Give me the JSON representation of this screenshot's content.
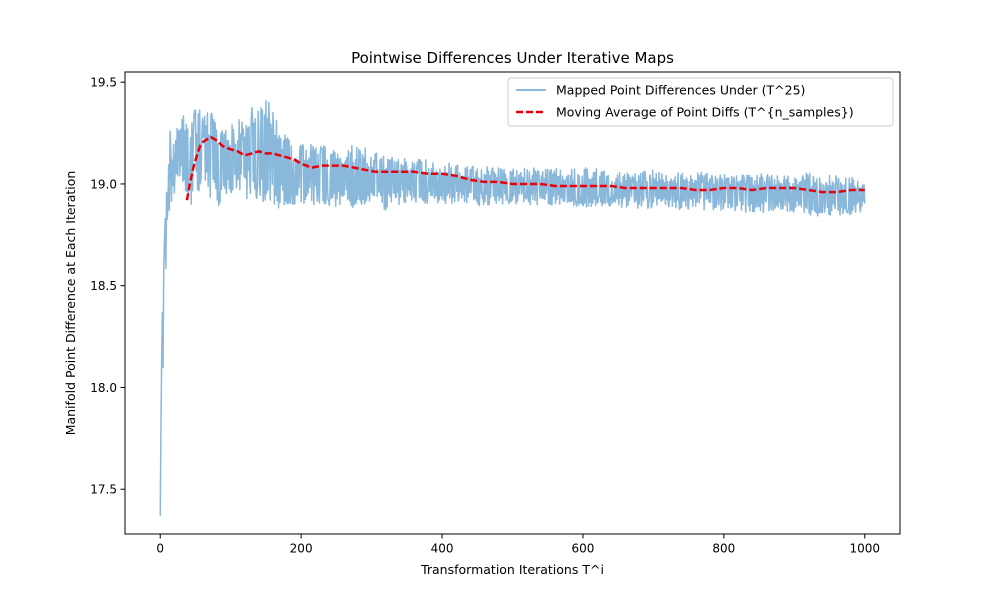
{
  "chart_data": {
    "type": "line",
    "title": "Pointwise Differences Under Iterative Maps",
    "xlabel": "Transformation Iterations T^i",
    "ylabel": "Manifold Point Difference at Each Iteration",
    "xlim": [
      -50,
      1050
    ],
    "ylim": [
      17.28,
      19.55
    ],
    "xticks": [
      0,
      200,
      400,
      600,
      800,
      1000
    ],
    "yticks": [
      17.5,
      18.0,
      18.5,
      19.0,
      19.5
    ],
    "xtick_labels": [
      "0",
      "200",
      "400",
      "600",
      "800",
      "1000"
    ],
    "ytick_labels": [
      "17.5",
      "18.0",
      "18.5",
      "19.0",
      "19.5"
    ],
    "legend_position": "top-right",
    "grid": false,
    "series": [
      {
        "name": "Mapped Point Differences Under (T^25)",
        "color": "#8ab8db",
        "style": "solid",
        "x": [
          0,
          1,
          2,
          3,
          4,
          5,
          6,
          7,
          8,
          9,
          10,
          12,
          14,
          16,
          18,
          20,
          22,
          24,
          26,
          28,
          30,
          32,
          34,
          36,
          38,
          40,
          42,
          44,
          46,
          48,
          50,
          55,
          60,
          65,
          70,
          75,
          80,
          85,
          90,
          95,
          100,
          110,
          120,
          130,
          140,
          150,
          160,
          170,
          180,
          190,
          200,
          220,
          240,
          260,
          280,
          300,
          320,
          340,
          360,
          380,
          400,
          430,
          460,
          490,
          520,
          550,
          580,
          610,
          640,
          670,
          700,
          730,
          760,
          790,
          820,
          850,
          880,
          910,
          940,
          970,
          1000
        ],
        "envelope_high": [
          17.37,
          17.8,
          18.5,
          18.4,
          18.2,
          18.6,
          18.85,
          18.85,
          18.9,
          19.0,
          19.05,
          19.1,
          19.27,
          19.2,
          19.18,
          19.22,
          19.25,
          19.28,
          19.3,
          19.33,
          19.35,
          19.37,
          19.33,
          19.3,
          19.36,
          19.38,
          19.35,
          19.34,
          19.37,
          19.36,
          19.4,
          19.38,
          19.38,
          19.42,
          19.36,
          19.34,
          19.3,
          19.3,
          19.28,
          19.3,
          19.29,
          19.31,
          19.34,
          19.38,
          19.36,
          19.43,
          19.4,
          19.28,
          19.24,
          19.2,
          19.22,
          19.2,
          19.2,
          19.18,
          19.2,
          19.16,
          19.14,
          19.13,
          19.13,
          19.12,
          19.11,
          19.09,
          19.09,
          19.08,
          19.08,
          19.08,
          19.07,
          19.09,
          19.06,
          19.06,
          19.07,
          19.06,
          19.06,
          19.05,
          19.05,
          19.05,
          19.04,
          19.06,
          19.05,
          19.04,
          19.02
        ],
        "envelope_low": [
          17.37,
          17.8,
          18.1,
          18.25,
          18.09,
          18.5,
          18.7,
          18.75,
          18.55,
          18.6,
          18.82,
          18.81,
          18.85,
          18.9,
          18.95,
          18.93,
          19.0,
          19.0,
          18.95,
          18.97,
          19.02,
          19.0,
          18.98,
          18.96,
          18.9,
          18.92,
          18.94,
          18.9,
          18.88,
          18.9,
          18.9,
          18.92,
          18.88,
          18.9,
          18.92,
          18.92,
          18.88,
          18.9,
          18.93,
          18.92,
          18.95,
          18.93,
          18.93,
          18.92,
          18.9,
          18.9,
          18.9,
          18.87,
          18.88,
          18.9,
          18.88,
          18.9,
          18.88,
          18.89,
          18.88,
          18.9,
          18.87,
          18.9,
          18.9,
          18.9,
          18.9,
          18.9,
          18.89,
          18.9,
          18.89,
          18.9,
          18.88,
          18.88,
          18.89,
          18.88,
          18.88,
          18.87,
          18.88,
          18.86,
          18.86,
          18.86,
          18.86,
          18.85,
          18.84,
          18.83,
          18.87
        ]
      },
      {
        "name": "Moving Average of Point Diffs (T^{n_samples})",
        "color": "#e8000b",
        "style": "dashed",
        "x": [
          38,
          42,
          47,
          52,
          57,
          62,
          67,
          72,
          77,
          82,
          87,
          92,
          100,
          110,
          120,
          130,
          140,
          150,
          160,
          170,
          180,
          190,
          200,
          215,
          230,
          245,
          260,
          275,
          290,
          305,
          320,
          340,
          360,
          380,
          400,
          420,
          440,
          460,
          480,
          500,
          520,
          540,
          560,
          580,
          600,
          620,
          640,
          660,
          680,
          700,
          720,
          740,
          760,
          780,
          800,
          820,
          840,
          860,
          880,
          900,
          920,
          940,
          960,
          980,
          1000
        ],
        "values": [
          18.92,
          19.0,
          19.08,
          19.14,
          19.19,
          19.21,
          19.22,
          19.23,
          19.22,
          19.21,
          19.19,
          19.18,
          19.17,
          19.16,
          19.14,
          19.15,
          19.16,
          19.15,
          19.15,
          19.14,
          19.13,
          19.12,
          19.1,
          19.08,
          19.09,
          19.09,
          19.09,
          19.08,
          19.07,
          19.06,
          19.06,
          19.06,
          19.06,
          19.05,
          19.05,
          19.04,
          19.02,
          19.01,
          19.01,
          19.0,
          19.0,
          19.0,
          18.99,
          18.99,
          18.99,
          18.99,
          18.99,
          18.98,
          18.98,
          18.98,
          18.98,
          18.98,
          18.97,
          18.97,
          18.98,
          18.98,
          18.97,
          18.98,
          18.98,
          18.98,
          18.97,
          18.96,
          18.96,
          18.97,
          18.97
        ]
      }
    ]
  }
}
